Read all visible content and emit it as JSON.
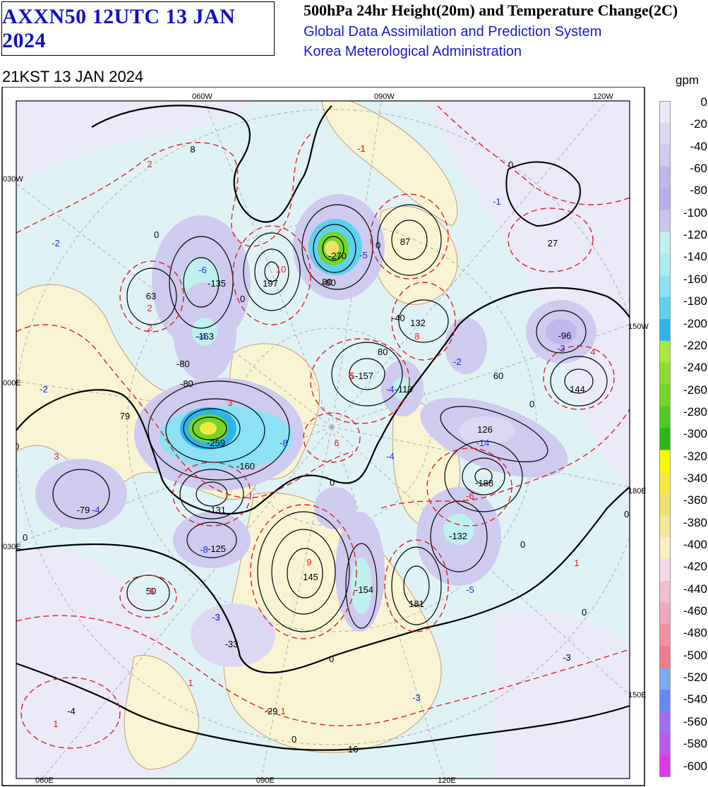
{
  "header": {
    "product_code": "AXXN50 12UTC 13 JAN 2024",
    "title": "500hPa 24hr Height(20m) and Temperature Change(2C)",
    "system": "Global Data Assimilation and Prediction System",
    "agency": "Korea Meterological Administration",
    "valid_time": "21KST 13 JAN 2024"
  },
  "legend": {
    "unit": "gpm",
    "labels": [
      "0",
      "-20",
      "-40",
      "-60",
      "-80",
      "-100",
      "-120",
      "-140",
      "-160",
      "-180",
      "-200",
      "-220",
      "-240",
      "-260",
      "-280",
      "-300",
      "-320",
      "-340",
      "-360",
      "-380",
      "-400",
      "-420",
      "-440",
      "-460",
      "-480",
      "-500",
      "-520",
      "-540",
      "-560",
      "-580",
      "-600"
    ],
    "colors": [
      "#eceaf8",
      "#dcd8f4",
      "#cfcaf0",
      "#bfb8ec",
      "#b5aeea",
      "#c8c4ee",
      "#bff0f0",
      "#a8ecf2",
      "#8ce2f4",
      "#60d0f0",
      "#30b4e8",
      "#a8e838",
      "#8edc30",
      "#74d428",
      "#50c820",
      "#28b818",
      "#f8f800",
      "#f4e840",
      "#f0e070",
      "#f4e898",
      "#f8f0c0",
      "#f4d8e8",
      "#f0bcd0",
      "#f0a8bc",
      "#f091a4",
      "#ee7a8a",
      "#7aaaf0",
      "#6886f4",
      "#a070f0",
      "#c058ee",
      "#e038ec"
    ]
  },
  "map": {
    "lon_labels_top": [
      "060W",
      "090W",
      "120W"
    ],
    "lon_labels_bottom": [
      "060E",
      "090E",
      "120E"
    ],
    "lat_labels_left": [
      "030W",
      "000E",
      "030E"
    ],
    "lat_labels_right": [
      "150W",
      "180E",
      "150E"
    ],
    "height_centers": [
      "8",
      "-135",
      "-163",
      "197",
      "-270",
      "87",
      "132",
      "63",
      "-157",
      "-118",
      "60",
      "-96",
      "144",
      "126",
      "79",
      "-259",
      "-188",
      "-131",
      "-125",
      "-132",
      "145",
      "-154",
      "181",
      "-79",
      "50",
      "-33",
      "-29",
      "-4",
      "-16",
      "27"
    ],
    "temp_values": [
      "2",
      "2",
      "-2",
      "-6",
      "-4",
      "-4",
      "-5",
      "-8",
      "-3",
      "-2",
      "-2",
      "-14",
      "-4",
      "-5",
      "-3",
      "-3",
      "-4",
      "-6",
      "-8",
      "6",
      "10",
      "6",
      "8",
      "9",
      "6",
      "5",
      "4",
      "2",
      "1",
      "1",
      "3",
      "3",
      "1",
      "1",
      "-1",
      "-2",
      "-3",
      "-3",
      "-1",
      "-3",
      "-2",
      "-1",
      "-3",
      "27"
    ],
    "contour_labels": [
      "0",
      "0",
      "0",
      "0",
      "0",
      "0",
      "0",
      "0",
      "0",
      "0",
      "0",
      "0",
      "0",
      "80",
      "80",
      "-80",
      "-80",
      "-80",
      "-160",
      "-40"
    ],
    "colors": {
      "height_contour": "#000000",
      "temp_contour": "#e41a1c",
      "land": "#fbf6d2",
      "coast": "#c8956a",
      "negative_temp_text": "#2030d8",
      "positive_temp_text": "#e41a1c"
    }
  }
}
